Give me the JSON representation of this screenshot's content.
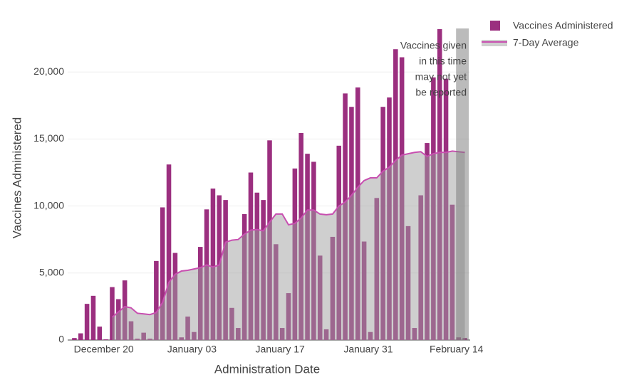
{
  "chart_data": {
    "type": "bar",
    "x_label": "Administration Date",
    "y_label": "Vaccines Administered",
    "annotation": [
      "Vaccines given",
      "in this time",
      "may not yet",
      "be reported"
    ],
    "categories": [
      null,
      null,
      null,
      null,
      null,
      "December 20",
      null,
      null,
      null,
      null,
      null,
      null,
      null,
      null,
      null,
      null,
      null,
      null,
      null,
      "January 03",
      null,
      null,
      null,
      null,
      null,
      null,
      null,
      null,
      null,
      null,
      null,
      null,
      null,
      "January 17",
      null,
      null,
      null,
      null,
      null,
      null,
      null,
      null,
      null,
      null,
      null,
      null,
      null,
      "January 31",
      null,
      null,
      null,
      null,
      null,
      null,
      null,
      null,
      null,
      null,
      null,
      null,
      null,
      "February 14",
      null
    ],
    "series": [
      {
        "name": "Vaccines Administered",
        "type": "bar",
        "color": "#9b2f7f",
        "values": [
          150,
          500,
          2700,
          3300,
          1000,
          50,
          3950,
          3050,
          4450,
          1400,
          100,
          550,
          100,
          5900,
          9900,
          13100,
          6500,
          200,
          1750,
          600,
          6950,
          9750,
          11300,
          10800,
          10450,
          2400,
          900,
          9400,
          12500,
          11000,
          10450,
          14900,
          7150,
          900,
          3500,
          12800,
          15450,
          13900,
          13300,
          6300,
          800,
          7700,
          14500,
          18400,
          17400,
          18850,
          7350,
          600,
          10600,
          17400,
          18100,
          21700,
          21100,
          8500,
          900,
          10800,
          14700,
          19600,
          23200,
          19500,
          10100,
          200,
          150
        ]
      },
      {
        "name": "7-Day Average",
        "type": "area",
        "color": "#c84fb0",
        "fill": "rgba(160,160,160,0.5)",
        "values": [
          null,
          null,
          null,
          null,
          null,
          null,
          1700,
          2100,
          2500,
          2400,
          2000,
          1950,
          1900,
          2050,
          2800,
          4300,
          4900,
          5150,
          5200,
          5300,
          5400,
          5600,
          5450,
          5600,
          7300,
          7450,
          7500,
          7900,
          8200,
          8250,
          8150,
          8800,
          9400,
          9400,
          8600,
          8700,
          9100,
          9700,
          9700,
          9400,
          9350,
          9400,
          10000,
          10300,
          10800,
          11400,
          11900,
          12100,
          12100,
          12600,
          12900,
          13400,
          13800,
          13900,
          14000,
          14050,
          13700,
          13900,
          14000,
          14000,
          14100,
          14050,
          14000
        ]
      }
    ],
    "ylim": [
      0,
      23250
    ],
    "yticks": [
      0,
      {
        "value": 5000,
        "label": "5,000"
      },
      {
        "value": 10000,
        "label": "10,000"
      },
      {
        "value": 15000,
        "label": "15,000"
      },
      {
        "value": 20000,
        "label": "20,000"
      }
    ],
    "grid": true,
    "legend": "top-right"
  }
}
